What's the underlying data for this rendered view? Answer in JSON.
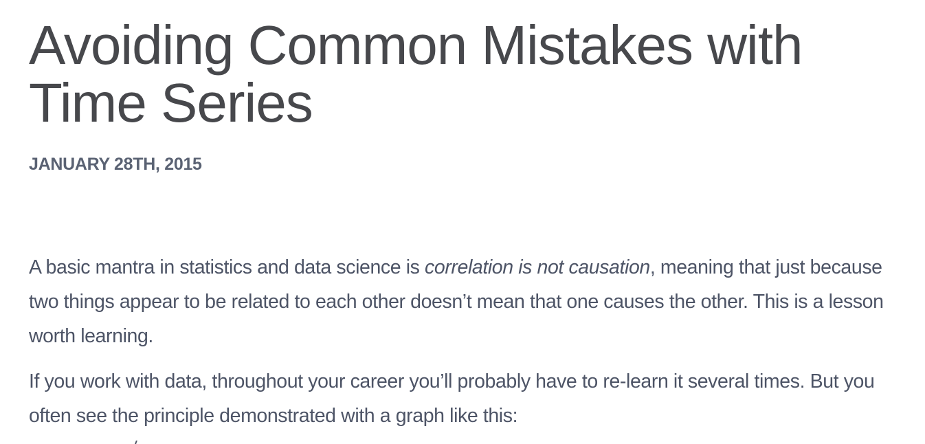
{
  "post": {
    "title": "Avoiding Common Mistakes with Time Series",
    "date": "JANUARY 28TH, 2015",
    "paragraph1": {
      "before": "A basic mantra in statistics and data science is ",
      "emphasis": "correlation is not causation",
      "after": ", meaning that just because two things appear to be related to each other doesn’t mean that one causes the other. This is a lesson worth learning."
    },
    "paragraph2": "If you work with data, throughout your career you’ll probably have to re-learn it several times. But you often see the principle demonstrated with a graph like this:"
  }
}
